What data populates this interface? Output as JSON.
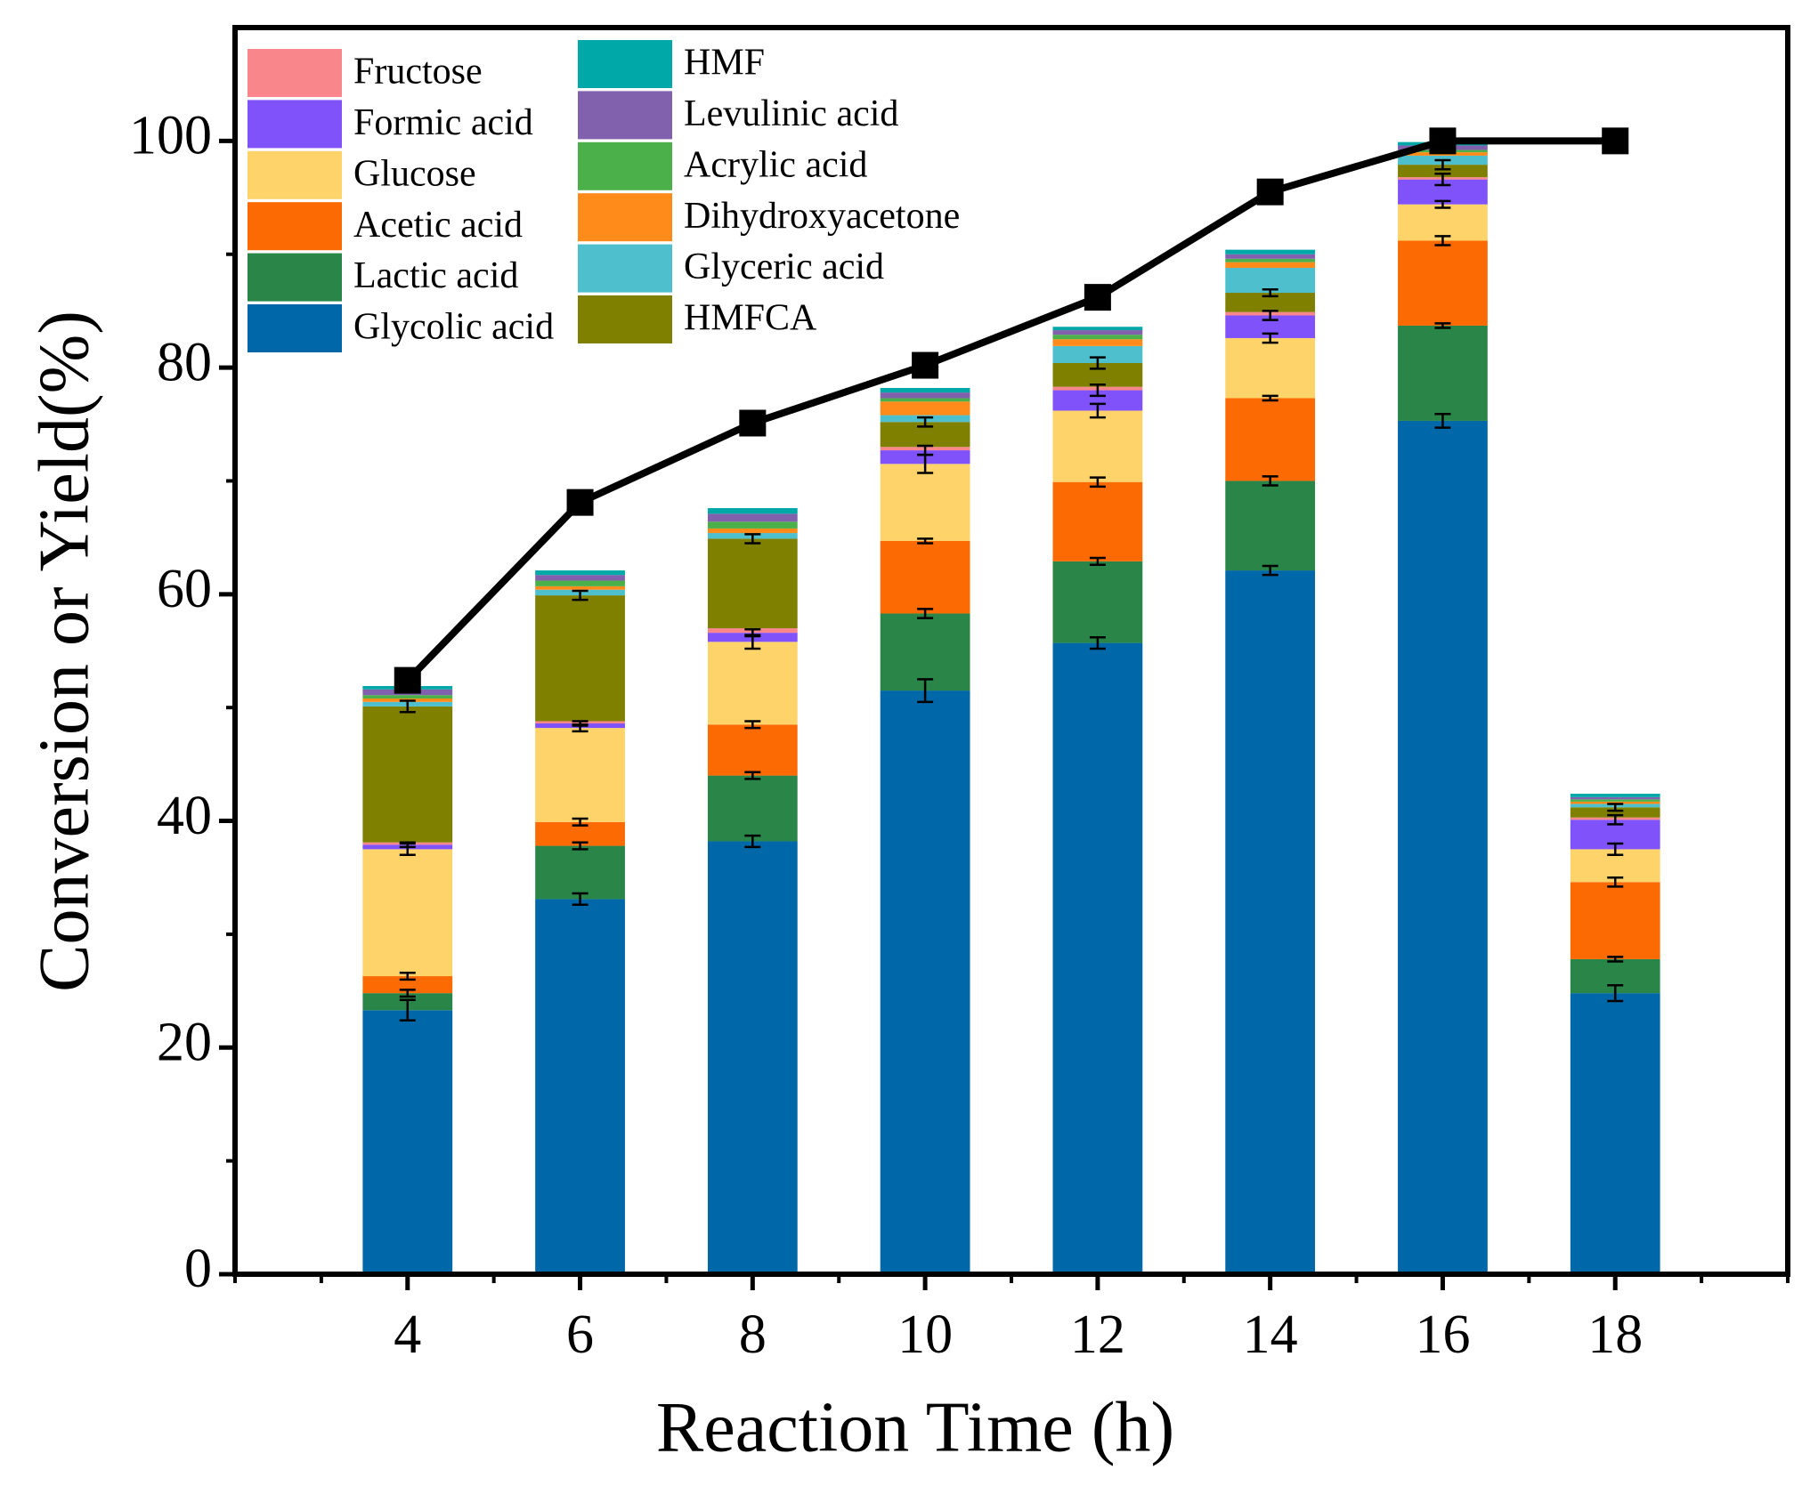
{
  "chart_data": {
    "type": "stacked-bar-line",
    "x_label": "Reaction Time (h)",
    "y_label": "Conversion or Yield(%)",
    "x": [
      4,
      6,
      8,
      10,
      12,
      14,
      16,
      18
    ],
    "xlim": [
      2,
      20
    ],
    "xticks": [
      4,
      6,
      8,
      10,
      12,
      14,
      16,
      18
    ],
    "ylim": [
      0,
      110
    ],
    "yticks": [
      0,
      20,
      40,
      60,
      80,
      100
    ],
    "series": [
      {
        "name": "Glycolic acid",
        "color": "#0067a8",
        "values": [
          23.3,
          33.1,
          38.2,
          51.5,
          55.7,
          62.1,
          75.3,
          24.8
        ],
        "errors": [
          0.9,
          0.5,
          0.5,
          1.0,
          0.5,
          0.4,
          0.6,
          0.7
        ]
      },
      {
        "name": "Lactic acid",
        "color": "#2a8648",
        "values": [
          1.5,
          4.7,
          5.8,
          6.8,
          7.2,
          7.9,
          8.4,
          3.0
        ],
        "errors": [
          0.3,
          0.3,
          0.3,
          0.4,
          0.3,
          0.4,
          0.2,
          0.2
        ]
      },
      {
        "name": "Acetic acid",
        "color": "#fc6a03",
        "values": [
          1.5,
          2.1,
          4.5,
          6.4,
          7.0,
          7.3,
          7.5,
          6.8
        ],
        "errors": [
          0.3,
          0.3,
          0.3,
          0.2,
          0.4,
          0.2,
          0.4,
          0.4
        ]
      },
      {
        "name": "Glucose",
        "color": "#fdd36a",
        "values": [
          11.2,
          8.3,
          7.3,
          6.8,
          6.3,
          5.3,
          3.2,
          2.9
        ],
        "errors": [
          0.5,
          0.3,
          0.6,
          0.8,
          0.6,
          0.4,
          0.3,
          0.5
        ]
      },
      {
        "name": "Formic acid",
        "color": "#8052f9",
        "values": [
          0.4,
          0.4,
          0.8,
          1.2,
          1.8,
          2.0,
          2.2,
          2.6
        ],
        "errors": [
          0.2,
          0.2,
          0.3,
          0.4,
          0.5,
          0.4,
          0.5,
          0.4
        ]
      },
      {
        "name": "Fructose",
        "color": "#f8868a",
        "values": [
          0.2,
          0.2,
          0.4,
          0.3,
          0.3,
          0.3,
          0.2,
          0.2
        ]
      },
      {
        "name": "HMFCA",
        "color": "#7f7f00",
        "values": [
          12.0,
          11.1,
          7.9,
          2.2,
          2.1,
          1.7,
          1.1,
          0.9
        ],
        "errors": [
          0.5,
          0.4,
          0.4,
          0.4,
          0.5,
          0.3,
          0.4,
          0.3
        ]
      },
      {
        "name": "Glyceric acid",
        "color": "#4ebfcd",
        "values": [
          0.4,
          0.5,
          0.5,
          0.6,
          1.5,
          2.2,
          0.8,
          0.3
        ]
      },
      {
        "name": "Dihydroxyacetone",
        "color": "#ff8c1a",
        "values": [
          0.3,
          0.3,
          0.4,
          1.2,
          0.6,
          0.5,
          0.3,
          0.2
        ]
      },
      {
        "name": "Acrylic acid",
        "color": "#4cb04a",
        "values": [
          0.3,
          0.5,
          0.6,
          0.3,
          0.4,
          0.3,
          0.2,
          0.2
        ]
      },
      {
        "name": "Levulinic acid",
        "color": "#8160ad",
        "values": [
          0.5,
          0.5,
          0.7,
          0.5,
          0.4,
          0.4,
          0.4,
          0.2
        ]
      },
      {
        "name": "HMF",
        "color": "#00a8a8",
        "values": [
          0.3,
          0.4,
          0.5,
          0.4,
          0.3,
          0.4,
          0.3,
          0.3
        ]
      }
    ],
    "line": {
      "color": "#000000",
      "values": [
        52.4,
        68.1,
        75.1,
        80.2,
        86.2,
        95.5,
        100,
        100
      ]
    }
  }
}
